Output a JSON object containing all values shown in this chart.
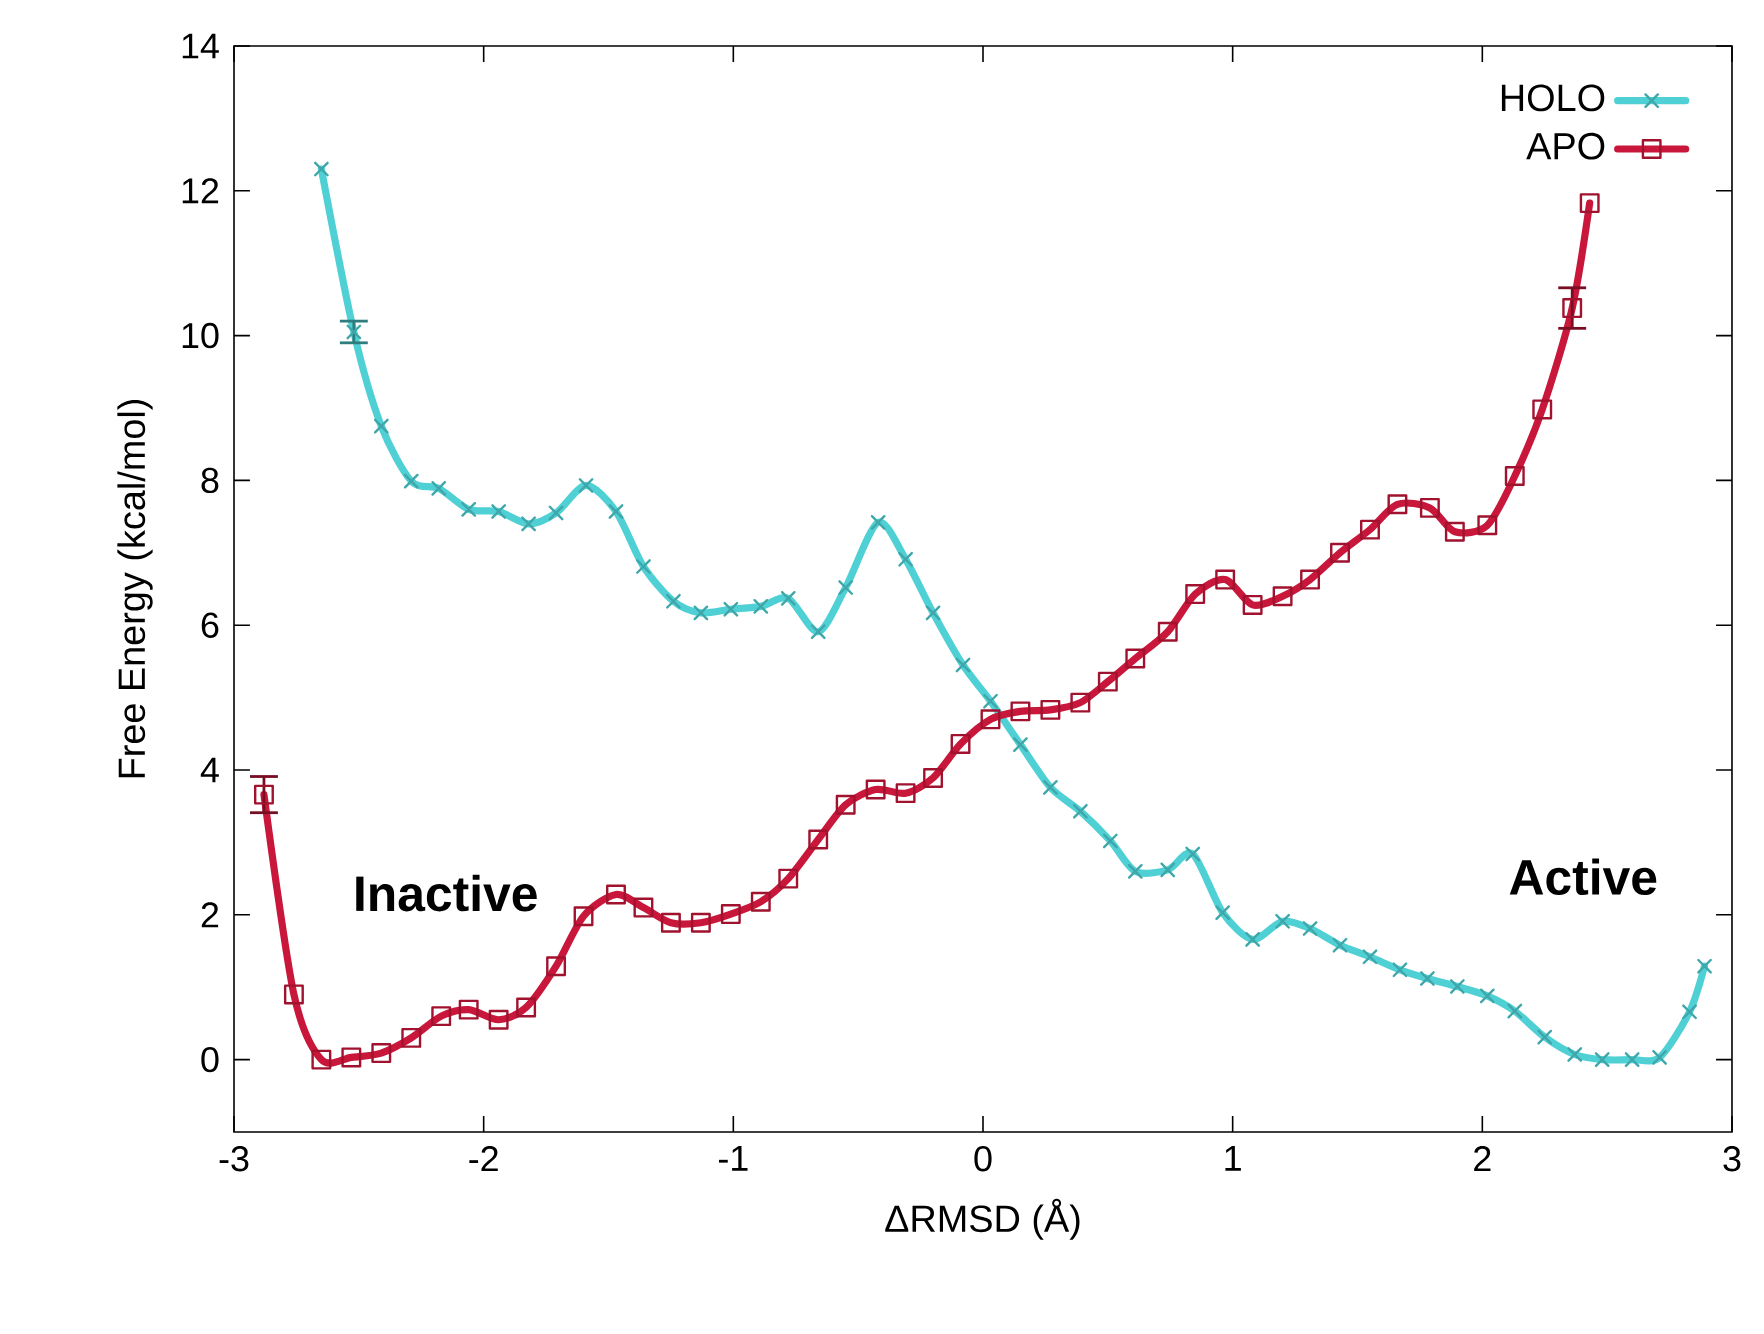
{
  "chart_data": {
    "type": "line",
    "xlabel": "ΔRMSD (Å)",
    "ylabel": "Free Energy (kcal/mol)",
    "xlim": [
      -3,
      3
    ],
    "ylim": [
      -1,
      14
    ],
    "xticks": [
      -3,
      -2,
      -1,
      0,
      1,
      2,
      3
    ],
    "yticks": [
      0,
      2,
      4,
      6,
      8,
      10,
      12,
      14
    ],
    "legend": "top right",
    "grid": false,
    "line_style": "solid",
    "annotations": [
      "Inactive",
      "Active"
    ],
    "series": [
      {
        "name": "HOLO",
        "color": "#4fd0d4",
        "marker": "cross",
        "x": [
          -2.65,
          -2.52,
          -2.41,
          -2.29,
          -2.18,
          -2.06,
          -1.94,
          -1.82,
          -1.71,
          -1.59,
          -1.47,
          -1.36,
          -1.24,
          -1.13,
          -1.01,
          -0.89,
          -0.78,
          -0.66,
          -0.55,
          -0.42,
          -0.31,
          -0.2,
          -0.08,
          0.03,
          0.15,
          0.27,
          0.39,
          0.51,
          0.61,
          0.74,
          0.84,
          0.96,
          1.08,
          1.2,
          1.31,
          1.43,
          1.55,
          1.67,
          1.78,
          1.9,
          2.02,
          2.13,
          2.25,
          2.37,
          2.48,
          2.6,
          2.71,
          2.83,
          2.89
        ],
        "values": [
          12.3,
          10.05,
          8.75,
          7.99,
          7.89,
          7.6,
          7.57,
          7.4,
          7.55,
          7.93,
          7.57,
          6.81,
          6.33,
          6.17,
          6.22,
          6.26,
          6.37,
          5.91,
          6.52,
          7.42,
          6.91,
          6.17,
          5.45,
          4.95,
          4.35,
          3.76,
          3.43,
          3.02,
          2.6,
          2.62,
          2.84,
          2.03,
          1.66,
          1.91,
          1.81,
          1.58,
          1.42,
          1.24,
          1.12,
          1.01,
          0.88,
          0.67,
          0.31,
          0.07,
          0.0,
          0.0,
          0.03,
          0.66,
          1.29
        ],
        "errors": [
          null,
          0.15,
          null,
          null,
          null,
          null,
          null,
          null,
          null,
          null,
          null,
          null,
          null,
          null,
          null,
          null,
          null,
          null,
          null,
          null,
          null,
          null,
          null,
          null,
          null,
          null,
          null,
          null,
          null,
          null,
          null,
          null,
          null,
          null,
          null,
          null,
          null,
          null,
          null,
          null,
          null,
          null,
          null,
          null,
          null,
          null,
          null,
          null,
          null
        ]
      },
      {
        "name": "APO",
        "color": "#c8173a",
        "marker": "square",
        "x": [
          -2.88,
          -2.76,
          -2.65,
          -2.53,
          -2.41,
          -2.29,
          -2.17,
          -2.06,
          -1.94,
          -1.83,
          -1.71,
          -1.6,
          -1.47,
          -1.36,
          -1.25,
          -1.13,
          -1.01,
          -0.89,
          -0.78,
          -0.66,
          -0.55,
          -0.43,
          -0.31,
          -0.2,
          -0.09,
          0.03,
          0.15,
          0.27,
          0.39,
          0.5,
          0.61,
          0.74,
          0.85,
          0.97,
          1.08,
          1.2,
          1.31,
          1.43,
          1.55,
          1.66,
          1.79,
          1.89,
          2.02,
          2.13,
          2.24,
          2.36,
          2.43
        ],
        "values": [
          3.66,
          0.9,
          0.0,
          0.03,
          0.09,
          0.3,
          0.6,
          0.69,
          0.55,
          0.72,
          1.29,
          1.98,
          2.28,
          2.1,
          1.89,
          1.89,
          2.01,
          2.18,
          2.5,
          3.04,
          3.52,
          3.73,
          3.68,
          3.89,
          4.36,
          4.7,
          4.81,
          4.83,
          4.93,
          5.22,
          5.54,
          5.91,
          6.43,
          6.63,
          6.28,
          6.4,
          6.63,
          7.0,
          7.32,
          7.67,
          7.62,
          7.29,
          7.38,
          8.06,
          8.98,
          10.38,
          11.83
        ],
        "errors": [
          0.25,
          null,
          null,
          null,
          null,
          null,
          null,
          null,
          null,
          null,
          null,
          null,
          null,
          null,
          null,
          null,
          null,
          null,
          null,
          null,
          null,
          null,
          null,
          null,
          null,
          null,
          null,
          null,
          null,
          null,
          null,
          null,
          null,
          null,
          null,
          null,
          null,
          null,
          null,
          null,
          null,
          null,
          null,
          null,
          null,
          0.28,
          null
        ]
      }
    ]
  }
}
